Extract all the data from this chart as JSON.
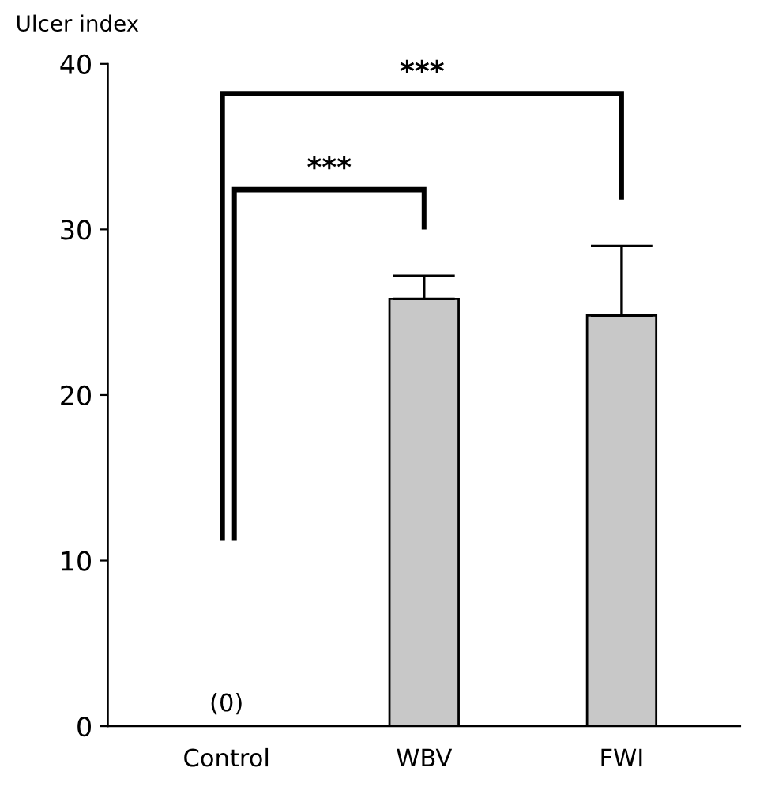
{
  "chart_data": {
    "type": "bar",
    "ylabel": "Ulcer index",
    "categories": [
      "Control",
      "WBV",
      "FWI"
    ],
    "values": [
      0,
      25.8,
      24.8
    ],
    "errors": [
      null,
      [
        25.8,
        27.2
      ],
      [
        24.8,
        29.0
      ]
    ],
    "value_labels": [
      "(0)",
      null,
      null
    ],
    "color": "#c8c8c8",
    "ylim": [
      0,
      40
    ],
    "yticks": [
      0,
      10,
      20,
      30,
      40
    ],
    "grid": false,
    "legend": false,
    "annotations": [
      "***",
      "***"
    ]
  }
}
